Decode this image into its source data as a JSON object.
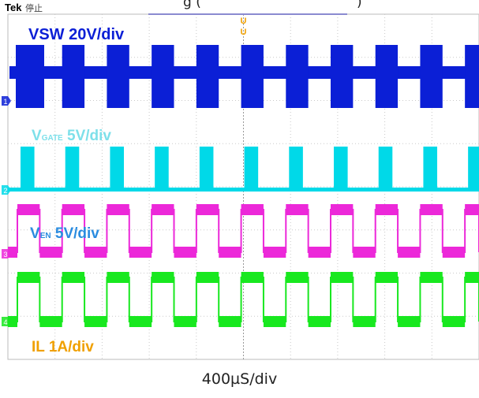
{
  "brand": "Tek",
  "status": "停止",
  "top_caption": "g (",
  "top_caption_tail": ")",
  "trigger_marker": "U",
  "timebase": "400µS/div",
  "chart_data": {
    "type": "line",
    "title": "",
    "x_unit": "div",
    "x_range": [
      0,
      10
    ],
    "grid": true,
    "divisions": {
      "x": 10,
      "y": 8
    },
    "period_div": 0.95,
    "duty": 0.5,
    "first_high_start_div": 0.0,
    "series": [
      {
        "name": "VSW",
        "label_main": "VSW 20V/div",
        "label_sub": "",
        "label_rest": "",
        "color": "#0b1fd6",
        "scale": "20V/div",
        "shape": "burst",
        "ground_marker": "1"
      },
      {
        "name": "VGATE",
        "label_main": "V",
        "label_sub": "GATE",
        "label_rest": " 5V/div",
        "color": "#00d9e8",
        "scale": "5V/div",
        "shape": "pulse",
        "ground_marker": "2"
      },
      {
        "name": "VEN",
        "label_main": "V",
        "label_sub": "EN",
        "label_rest": " 5V/div",
        "color": "#ec28d9",
        "scale": "5V/div",
        "shape": "square",
        "ground_marker": "3"
      },
      {
        "name": "IL",
        "label_main": "IL 1A/div",
        "label_sub": "",
        "label_rest": "",
        "color": "#18e81f",
        "scale": "1A/div",
        "shape": "square",
        "ground_marker": "4"
      }
    ]
  }
}
